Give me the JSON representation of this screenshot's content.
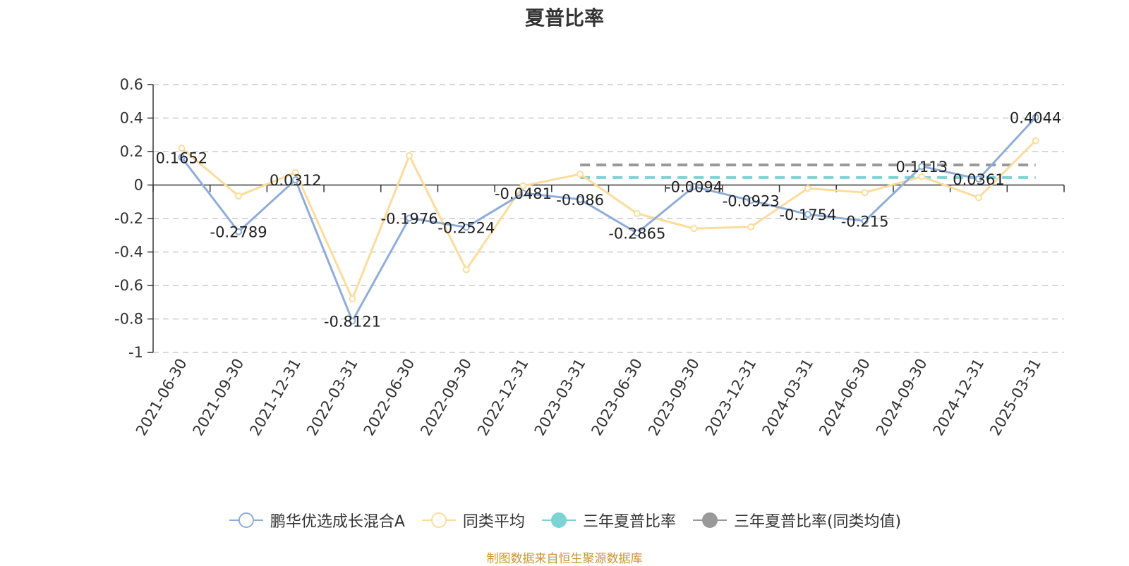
{
  "chart_data": {
    "type": "line",
    "title": "夏普比率",
    "categories": [
      "2021-06-30",
      "2021-09-30",
      "2021-12-31",
      "2022-03-31",
      "2022-06-30",
      "2022-09-30",
      "2022-12-31",
      "2023-03-31",
      "2023-06-30",
      "2023-09-30",
      "2023-12-31",
      "2024-03-31",
      "2024-06-30",
      "2024-09-30",
      "2024-12-31",
      "2025-03-31"
    ],
    "ylim": [
      -1,
      0.6
    ],
    "yticks": [
      0.6,
      0.4,
      0.2,
      0,
      -0.2,
      -0.4,
      -0.6,
      -0.8,
      -1
    ],
    "grid": true,
    "legend_position": "bottom",
    "series": [
      {
        "name": "鹏华优选成长混合A",
        "color": "#8eaddb",
        "values": [
          0.1652,
          -0.2789,
          0.0312,
          -0.8121,
          -0.1976,
          -0.2524,
          -0.0481,
          -0.086,
          -0.2865,
          -0.0094,
          -0.0923,
          -0.1754,
          -0.215,
          0.1113,
          0.0361,
          0.4044
        ],
        "labels": [
          "0.1652",
          "-0.2789",
          "0.0312",
          "-0.8121",
          "-0.1976",
          "-0.2524",
          "-0.0481",
          "-0.086",
          "-0.2865",
          "-0.0094",
          "-0.0923",
          "-0.1754",
          "-0.215",
          "0.1113",
          "0.0361",
          "0.4044"
        ]
      },
      {
        "name": "同类平均",
        "color": "#fddc9b",
        "values": [
          0.22,
          -0.065,
          0.075,
          -0.68,
          0.175,
          -0.505,
          -0.005,
          0.065,
          -0.17,
          -0.26,
          -0.25,
          -0.02,
          -0.045,
          0.05,
          -0.075,
          0.265
        ]
      }
    ],
    "reference_lines": [
      {
        "name": "三年夏普比率",
        "color": "#7dd3d3",
        "value": 0.045,
        "from": "2023-03-31",
        "to": "2025-03-31"
      },
      {
        "name": "三年夏普比率(同类均值)",
        "color": "#999999",
        "value": 0.12,
        "from": "2023-03-31",
        "to": "2025-03-31"
      }
    ]
  },
  "source_note": "制图数据来自恒生聚源数据库"
}
